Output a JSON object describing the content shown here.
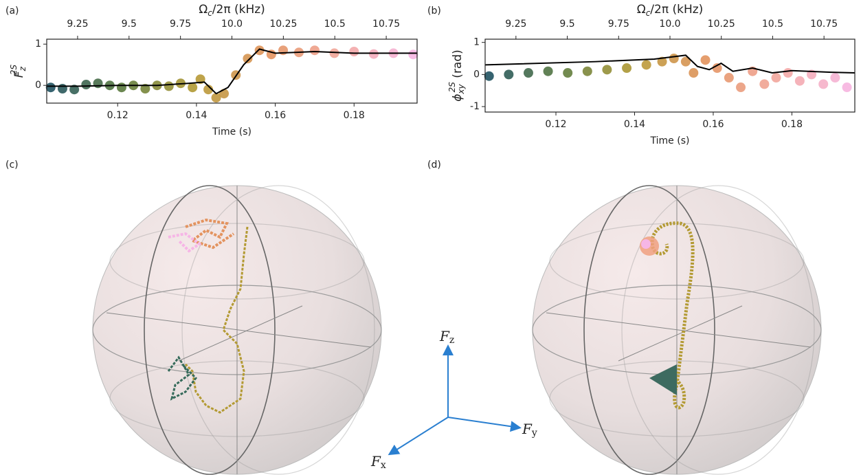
{
  "chart_data": [
    {
      "type": "line",
      "panel": "(a)",
      "xlabel": "Time (s)",
      "ylabel": [
        "F",
        "z",
        "2S"
      ],
      "x2label": [
        "Ω",
        "c",
        "/2π (kHz)"
      ],
      "xlim": [
        0.102,
        0.196
      ],
      "xticks": [
        0.12,
        0.14,
        0.16,
        0.18
      ],
      "x2lim": [
        9.1,
        10.9
      ],
      "x2ticks": [
        9.25,
        9.5,
        9.75,
        {
          "value": 10,
          "label": "10.0"
        },
        10.25,
        10.5,
        10.75
      ],
      "ylim": [
        -0.43,
        1.12
      ],
      "yticks": [
        0,
        1
      ],
      "colormap": [
        "#1d5063",
        "#5a7a3e",
        "#b39a33",
        "#e3935f",
        "#f3a7a0",
        "#f6b6e6"
      ],
      "series": [
        {
          "kind": "data",
          "x": [
            0.103,
            0.106,
            0.109,
            0.112,
            0.115,
            0.118,
            0.121,
            0.124,
            0.127,
            0.13,
            0.133,
            0.136,
            0.139,
            0.141,
            0.143,
            0.145,
            0.147,
            0.15,
            0.153,
            0.156,
            0.159,
            0.162,
            0.166,
            0.17,
            0.175,
            0.18,
            0.185,
            0.19,
            0.195
          ],
          "values": [
            -0.05,
            -0.08,
            -0.1,
            0.02,
            0.05,
            0,
            -0.05,
            0,
            -0.08,
            0,
            -0.02,
            0.05,
            -0.05,
            0.15,
            -0.1,
            -0.3,
            -0.2,
            0.25,
            0.65,
            0.85,
            0.75,
            0.85,
            0.8,
            0.85,
            0.78,
            0.82,
            0.76,
            0.78,
            0.75
          ]
        },
        {
          "kind": "fit",
          "color": "#000000",
          "x": [
            0.102,
            0.11,
            0.12,
            0.13,
            0.138,
            0.142,
            0.145,
            0.148,
            0.152,
            0.156,
            0.16,
            0.165,
            0.17,
            0.18,
            0.19,
            0.196
          ],
          "values": [
            -0.02,
            -0.02,
            0,
            0,
            0.05,
            0.08,
            -0.2,
            -0.05,
            0.5,
            0.88,
            0.78,
            0.8,
            0.82,
            0.78,
            0.78,
            0.78
          ]
        }
      ]
    },
    {
      "type": "line",
      "panel": "(b)",
      "xlabel": "Time (s)",
      "ylabel": [
        "ϕ",
        "xy",
        "2S",
        " (rad)"
      ],
      "x2label": [
        "Ω",
        "c",
        "/2π (kHz)"
      ],
      "xlim": [
        0.102,
        0.196
      ],
      "xticks": [
        0.12,
        0.14,
        0.16,
        0.18
      ],
      "x2lim": [
        9.1,
        10.9
      ],
      "x2ticks": [
        9.25,
        9.5,
        9.75,
        {
          "value": 10,
          "label": "10.0"
        },
        10.25,
        10.5,
        10.75
      ],
      "ylim": [
        -1.17,
        1.1
      ],
      "yticks": [
        -1,
        0,
        1
      ],
      "colormap": [
        "#1d5063",
        "#5a7a3e",
        "#b39a33",
        "#e3935f",
        "#f3a7a0",
        "#f6b6e6"
      ],
      "series": [
        {
          "kind": "data",
          "x": [
            0.103,
            0.108,
            0.113,
            0.118,
            0.123,
            0.128,
            0.133,
            0.138,
            0.143,
            0.147,
            0.15,
            0.153,
            0.155,
            0.158,
            0.161,
            0.164,
            0.167,
            0.17,
            0.173,
            0.176,
            0.179,
            0.182,
            0.185,
            0.188,
            0.191,
            0.194
          ],
          "values": [
            -0.05,
            0,
            0.05,
            0.1,
            0.05,
            0.1,
            0.15,
            0.2,
            0.3,
            0.4,
            0.5,
            0.4,
            0.05,
            0.45,
            0.2,
            -0.1,
            -0.4,
            0.1,
            -0.3,
            -0.1,
            0.05,
            -0.2,
            0,
            -0.3,
            -0.1,
            -0.4
          ]
        },
        {
          "kind": "fit",
          "color": "#000000",
          "x": [
            0.102,
            0.13,
            0.145,
            0.153,
            0.156,
            0.159,
            0.162,
            0.165,
            0.17,
            0.175,
            0.18,
            0.19,
            0.196
          ],
          "values": [
            0.3,
            0.4,
            0.48,
            0.6,
            0.25,
            0.15,
            0.35,
            0.1,
            0.2,
            0.05,
            0.12,
            0.07,
            0.05
          ]
        }
      ]
    }
  ],
  "bloch": {
    "panels": [
      "(c)",
      "(d)"
    ],
    "axes": [
      {
        "symbol": "F",
        "sub": "z"
      },
      {
        "symbol": "F",
        "sub": "y"
      },
      {
        "symbol": "F",
        "sub": "x"
      }
    ]
  }
}
